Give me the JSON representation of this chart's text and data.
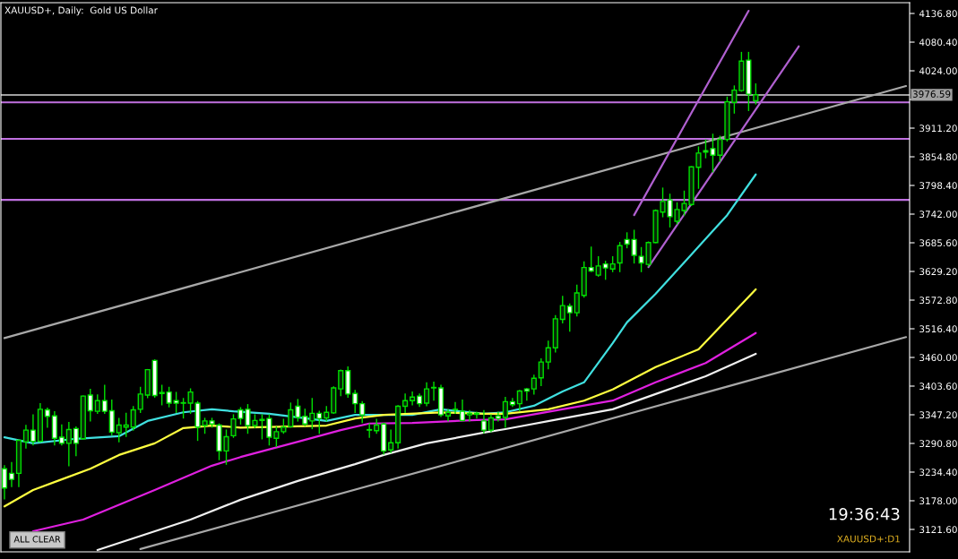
{
  "chart_data": {
    "type": "candlestick",
    "title": "XAUUSD+, Daily:  Gold US Dollar",
    "annotations": [
      "19:36:43",
      "XAUUSD+:D1",
      "ALL CLEAR"
    ],
    "categories": [
      null,
      null,
      null,
      null,
      null,
      null,
      null,
      null,
      null,
      null,
      null,
      null,
      null,
      null,
      null,
      null,
      null,
      null,
      null,
      null,
      null,
      null,
      null,
      null,
      null,
      null,
      null,
      null,
      null,
      null,
      null,
      null,
      null,
      null,
      null,
      null,
      null,
      null,
      null,
      null,
      null,
      null,
      null,
      null,
      null,
      null,
      null,
      null,
      null,
      null,
      null,
      null,
      null,
      null,
      null,
      null,
      null,
      null,
      null,
      null,
      null,
      null,
      null,
      null,
      null,
      null,
      null,
      null,
      null,
      null,
      null,
      null,
      null,
      null,
      null,
      null,
      null,
      null,
      null,
      null,
      null,
      null,
      null,
      null,
      null,
      null,
      null,
      null,
      null,
      null,
      null,
      null,
      null,
      null,
      null,
      null,
      null,
      null,
      null,
      null,
      null,
      null,
      null,
      null,
      null,
      null,
      null,
      null,
      null,
      null,
      null,
      null,
      null,
      null,
      null,
      null,
      null,
      null,
      null,
      null,
      null,
      null,
      null,
      null,
      null,
      null,
      null
    ],
    "color": "#00e000",
    "ohlc": [
      [
        3241,
        3247,
        3182,
        3203
      ],
      [
        3232,
        3253,
        3206,
        3220
      ],
      [
        3232,
        3297,
        3206,
        3297
      ],
      [
        3294,
        3326,
        3282,
        3317
      ],
      [
        3317,
        3347,
        3288,
        3295
      ],
      [
        3295,
        3369,
        3294,
        3358
      ],
      [
        3357,
        3360,
        3323,
        3344
      ],
      [
        3345,
        3353,
        3288,
        3301
      ],
      [
        3303,
        3327,
        3288,
        3291
      ],
      [
        3291,
        3332,
        3247,
        3318
      ],
      [
        3320,
        3323,
        3267,
        3291
      ],
      [
        3300,
        3384,
        3300,
        3384
      ],
      [
        3386,
        3397,
        3335,
        3355
      ],
      [
        3354,
        3386,
        3350,
        3375
      ],
      [
        3375,
        3405,
        3350,
        3354
      ],
      [
        3355,
        3376,
        3308,
        3313
      ],
      [
        3312,
        3340,
        3294,
        3327
      ],
      [
        3323,
        3350,
        3305,
        3327
      ],
      [
        3323,
        3363,
        3317,
        3357
      ],
      [
        3358,
        3401,
        3352,
        3388
      ],
      [
        3386,
        3436,
        3381,
        3436
      ],
      [
        3454,
        3455,
        3382,
        3385
      ],
      [
        3391,
        3405,
        3367,
        3389
      ],
      [
        3392,
        3401,
        3363,
        3370
      ],
      [
        3375,
        3391,
        3352,
        3370
      ],
      [
        3371,
        3379,
        3341,
        3370
      ],
      [
        3370,
        3398,
        3350,
        3392
      ],
      [
        3370,
        3373,
        3297,
        3323
      ],
      [
        3326,
        3340,
        3311,
        3335
      ],
      [
        3335,
        3340,
        3323,
        3329
      ],
      [
        3327,
        3329,
        3259,
        3276
      ],
      [
        3276,
        3317,
        3250,
        3304
      ],
      [
        3306,
        3347,
        3303,
        3339
      ],
      [
        3357,
        3361,
        3329,
        3340
      ],
      [
        3358,
        3367,
        3311,
        3326
      ],
      [
        3326,
        3347,
        3322,
        3336
      ],
      [
        3338,
        3347,
        3300,
        3336
      ],
      [
        3340,
        3347,
        3288,
        3303
      ],
      [
        3301,
        3323,
        3285,
        3314
      ],
      [
        3314,
        3338,
        3311,
        3323
      ],
      [
        3324,
        3370,
        3323,
        3357
      ],
      [
        3364,
        3377,
        3335,
        3342
      ],
      [
        3344,
        3358,
        3326,
        3329
      ],
      [
        3335,
        3379,
        3320,
        3350
      ],
      [
        3350,
        3354,
        3311,
        3340
      ],
      [
        3341,
        3363,
        3335,
        3352
      ],
      [
        3351,
        3402,
        3350,
        3400
      ],
      [
        3398,
        3435,
        3385,
        3434
      ],
      [
        3434,
        3441,
        3382,
        3388
      ],
      [
        3389,
        3395,
        3352,
        3369
      ],
      [
        3369,
        3373,
        3332,
        3347
      ],
      [
        3318,
        3329,
        3303,
        3317
      ],
      [
        3316,
        3338,
        3311,
        3327
      ],
      [
        3329,
        3330,
        3270,
        3276
      ],
      [
        3278,
        3317,
        3273,
        3292
      ],
      [
        3292,
        3365,
        3282,
        3364
      ],
      [
        3364,
        3388,
        3352,
        3375
      ],
      [
        3375,
        3392,
        3367,
        3382
      ],
      [
        3384,
        3388,
        3364,
        3369
      ],
      [
        3370,
        3410,
        3365,
        3398
      ],
      [
        3400,
        3411,
        3376,
        3401
      ],
      [
        3400,
        3405,
        3344,
        3347
      ],
      [
        3345,
        3357,
        3335,
        3352
      ],
      [
        3357,
        3371,
        3350,
        3358
      ],
      [
        3354,
        3376,
        3335,
        3336
      ],
      [
        3347,
        3355,
        3335,
        3350
      ],
      [
        3348,
        3352,
        3341,
        3350
      ],
      [
        3335,
        3355,
        3312,
        3317
      ],
      [
        3317,
        3347,
        3314,
        3341
      ],
      [
        3345,
        3352,
        3335,
        3340
      ],
      [
        3342,
        3381,
        3323,
        3373
      ],
      [
        3373,
        3379,
        3364,
        3367
      ],
      [
        3369,
        3395,
        3355,
        3394
      ],
      [
        3398,
        3399,
        3376,
        3394
      ],
      [
        3398,
        3425,
        3388,
        3419
      ],
      [
        3420,
        3457,
        3405,
        3451
      ],
      [
        3451,
        3492,
        3438,
        3479
      ],
      [
        3479,
        3542,
        3471,
        3536
      ],
      [
        3535,
        3580,
        3528,
        3562
      ],
      [
        3561,
        3565,
        3512,
        3548
      ],
      [
        3548,
        3602,
        3542,
        3587
      ],
      [
        3582,
        3648,
        3579,
        3637
      ],
      [
        3637,
        3677,
        3629,
        3630
      ],
      [
        3622,
        3658,
        3620,
        3640
      ],
      [
        3644,
        3649,
        3614,
        3636
      ],
      [
        3634,
        3658,
        3629,
        3644
      ],
      [
        3646,
        3686,
        3629,
        3680
      ],
      [
        3692,
        3705,
        3676,
        3683
      ],
      [
        3692,
        3710,
        3646,
        3661
      ],
      [
        3659,
        3676,
        3629,
        3646
      ],
      [
        3643,
        3687,
        3640,
        3686
      ],
      [
        3686,
        3750,
        3686,
        3749
      ],
      [
        3746,
        3793,
        3737,
        3767
      ],
      [
        3770,
        3781,
        3717,
        3737
      ],
      [
        3728,
        3764,
        3723,
        3751
      ],
      [
        3749,
        3787,
        3740,
        3763
      ],
      [
        3761,
        3835,
        3759,
        3835
      ],
      [
        3834,
        3874,
        3793,
        3862
      ],
      [
        3867,
        3888,
        3853,
        3864
      ],
      [
        3871,
        3899,
        3825,
        3858
      ],
      [
        3858,
        3895,
        3846,
        3889
      ],
      [
        3889,
        3972,
        3886,
        3963
      ],
      [
        3962,
        3994,
        3941,
        3986
      ],
      [
        3985,
        4060,
        3984,
        4043
      ],
      [
        4045,
        4060,
        3946,
        3978
      ],
      [
        3965,
        3998,
        3959,
        3977
      ],
      null,
      null,
      null,
      null,
      null,
      null,
      null,
      null,
      null,
      null,
      null,
      null,
      null,
      null,
      null,
      null,
      null,
      null,
      null,
      null,
      null
    ],
    "series": [
      {
        "type": "line",
        "color": "#40e0e0",
        "values": [
          3303,
          null,
          null,
          null,
          3291,
          null,
          null,
          null,
          null,
          null,
          3300,
          null,
          null,
          null,
          null,
          null,
          3305,
          null,
          null,
          null,
          3335,
          null,
          null,
          null,
          null,
          3352,
          null,
          null,
          null,
          3358,
          null,
          null,
          3354,
          null,
          null,
          null,
          null,
          3349,
          null,
          null,
          null,
          null,
          null,
          null,
          null,
          3335,
          null,
          null,
          null,
          3347,
          null,
          null,
          null,
          null,
          null,
          null,
          null,
          3347,
          null,
          null,
          null,
          3358,
          null,
          null,
          null,
          null,
          null,
          3349,
          null,
          null,
          3352,
          null,
          null,
          null,
          3365,
          null,
          null,
          null,
          3393,
          null,
          null,
          3411,
          null,
          null,
          null,
          3488,
          null,
          3529,
          null,
          null,
          null,
          3585,
          null,
          null,
          null,
          null,
          null,
          null,
          null,
          null,
          null,
          3740,
          null,
          null,
          null,
          3820,
          null,
          null,
          null,
          null,
          null,
          null,
          null,
          null,
          null,
          null,
          null,
          null,
          null,
          null,
          null,
          null,
          null,
          null,
          null,
          null,
          null
        ]
      },
      {
        "type": "line",
        "color": "#ffff40",
        "values": [
          3167,
          null,
          null,
          null,
          3199,
          null,
          null,
          null,
          3220,
          null,
          null,
          null,
          3241,
          null,
          null,
          null,
          3268,
          null,
          null,
          null,
          null,
          3291,
          null,
          null,
          null,
          3321,
          null,
          null,
          null,
          3326,
          null,
          null,
          null,
          3322,
          null,
          null,
          null,
          null,
          null,
          null,
          null,
          null,
          null,
          null,
          null,
          3326,
          null,
          null,
          null,
          3340,
          null,
          null,
          null,
          3347,
          null,
          null,
          null,
          null,
          null,
          null,
          null,
          3352,
          null,
          null,
          null,
          null,
          null,
          3349,
          null,
          null,
          3349,
          null,
          null,
          null,
          null,
          null,
          3358,
          null,
          null,
          null,
          null,
          3375,
          null,
          null,
          null,
          3397,
          null,
          null,
          null,
          null,
          null,
          3441,
          null,
          null,
          null,
          null,
          null,
          3476,
          null,
          null,
          null,
          null,
          null,
          null,
          null,
          3594,
          null,
          null,
          null,
          null,
          null,
          null,
          null,
          null,
          null,
          null,
          null,
          null,
          null,
          null,
          null,
          null,
          null,
          null,
          null,
          null,
          null
        ]
      },
      {
        "type": "line",
        "color": "#e020e0",
        "values": [
          null,
          null,
          null,
          null,
          3118,
          null,
          null,
          null,
          null,
          null,
          null,
          3141,
          null,
          null,
          null,
          null,
          null,
          null,
          null,
          null,
          null,
          3199,
          null,
          null,
          null,
          null,
          null,
          null,
          null,
          3247,
          null,
          null,
          null,
          3264,
          null,
          null,
          null,
          null,
          null,
          null,
          null,
          3294,
          null,
          null,
          null,
          null,
          null,
          3317,
          null,
          null,
          null,
          3330,
          null,
          null,
          null,
          null,
          null,
          3331,
          null,
          null,
          null,
          null,
          null,
          null,
          null,
          null,
          3337,
          null,
          null,
          null,
          3338,
          null,
          null,
          null,
          null,
          null,
          null,
          null,
          3358,
          null,
          null,
          null,
          null,
          null,
          null,
          3375,
          null,
          null,
          null,
          null,
          null,
          3411,
          null,
          null,
          null,
          null,
          null,
          null,
          3449,
          null,
          null,
          null,
          null,
          null,
          null,
          3508,
          null,
          null,
          null,
          null,
          null,
          null,
          null,
          null,
          null,
          null,
          null,
          null,
          null,
          null,
          null,
          null,
          null,
          null,
          null,
          null,
          null
        ]
      },
      {
        "type": "line",
        "color": "#f0f0f0",
        "values": [
          null,
          null,
          null,
          null,
          null,
          null,
          null,
          null,
          null,
          null,
          null,
          null,
          null,
          3081,
          null,
          null,
          null,
          null,
          null,
          null,
          null,
          null,
          null,
          null,
          null,
          null,
          3141,
          null,
          null,
          null,
          null,
          null,
          null,
          3180,
          null,
          null,
          null,
          null,
          null,
          null,
          null,
          3217,
          null,
          null,
          null,
          null,
          null,
          null,
          null,
          3250,
          null,
          null,
          null,
          3268,
          null,
          null,
          null,
          null,
          null,
          3291,
          null,
          null,
          null,
          null,
          null,
          null,
          null,
          3312,
          null,
          null,
          3319,
          null,
          null,
          null,
          null,
          null,
          null,
          null,
          3340,
          null,
          null,
          null,
          null,
          null,
          null,
          3358,
          null,
          null,
          null,
          null,
          null,
          3388,
          null,
          null,
          null,
          null,
          null,
          null,
          3423,
          null,
          null,
          null,
          null,
          null,
          null,
          3467,
          null,
          null,
          null,
          null,
          null,
          null,
          null,
          null,
          null,
          null,
          null,
          null,
          null,
          null,
          null,
          null,
          null,
          null,
          null,
          null,
          null
        ]
      },
      {
        "type": "line",
        "color": "#a8a8a8",
        "values": [
          3498,
          null,
          null,
          null,
          null,
          null,
          null,
          null,
          null,
          null,
          null,
          null,
          null,
          null,
          null,
          null,
          null,
          null,
          null,
          null,
          null,
          null,
          null,
          null,
          null,
          null,
          null,
          null,
          null,
          null,
          null,
          null,
          null,
          null,
          null,
          null,
          null,
          null,
          null,
          null,
          null,
          null,
          null,
          null,
          null,
          null,
          null,
          null,
          null,
          null,
          null,
          null,
          null,
          null,
          null,
          null,
          null,
          null,
          null,
          null,
          null,
          null,
          null,
          null,
          null,
          null,
          null,
          null,
          null,
          null,
          null,
          null,
          null,
          null,
          null,
          null,
          null,
          null,
          null,
          null,
          null,
          null,
          null,
          null,
          null,
          null,
          null,
          null,
          null,
          null,
          null,
          null,
          null,
          null,
          null,
          null,
          null,
          null,
          null,
          null,
          null,
          null,
          null,
          null,
          null,
          null,
          null,
          null,
          null,
          null,
          null,
          null,
          null,
          null,
          null,
          null,
          null,
          null,
          null,
          null,
          null,
          null,
          null,
          null,
          null,
          null,
          3994
        ]
      },
      {
        "type": "line",
        "color": "#a8a8a8",
        "values": [
          null,
          null,
          null,
          null,
          null,
          null,
          null,
          null,
          null,
          null,
          null,
          null,
          null,
          null,
          null,
          null,
          null,
          null,
          null,
          3083,
          null,
          null,
          null,
          null,
          null,
          null,
          null,
          null,
          null,
          null,
          null,
          null,
          null,
          null,
          null,
          null,
          null,
          null,
          null,
          null,
          null,
          null,
          null,
          null,
          null,
          null,
          null,
          null,
          null,
          null,
          null,
          null,
          null,
          null,
          null,
          null,
          null,
          null,
          null,
          null,
          null,
          null,
          null,
          null,
          null,
          null,
          null,
          null,
          null,
          null,
          null,
          null,
          null,
          null,
          null,
          null,
          null,
          null,
          null,
          null,
          null,
          null,
          null,
          null,
          null,
          null,
          null,
          null,
          null,
          null,
          null,
          null,
          null,
          null,
          null,
          null,
          null,
          null,
          null,
          null,
          null,
          null,
          null,
          null,
          null,
          null,
          null,
          null,
          null,
          null,
          null,
          null,
          null,
          null,
          null,
          null,
          null,
          null,
          null,
          null,
          null,
          null,
          null,
          null,
          null,
          null,
          3500
        ]
      },
      {
        "type": "line",
        "color": "#b060d0",
        "values": [
          null,
          null,
          null,
          null,
          null,
          null,
          null,
          null,
          null,
          null,
          null,
          null,
          null,
          null,
          null,
          null,
          null,
          null,
          null,
          null,
          null,
          null,
          null,
          null,
          null,
          null,
          null,
          null,
          null,
          null,
          null,
          null,
          null,
          null,
          null,
          null,
          null,
          null,
          null,
          null,
          null,
          null,
          null,
          null,
          null,
          null,
          null,
          null,
          null,
          null,
          null,
          null,
          null,
          null,
          null,
          null,
          null,
          null,
          null,
          null,
          null,
          null,
          null,
          null,
          null,
          null,
          null,
          null,
          null,
          null,
          null,
          null,
          null,
          null,
          null,
          null,
          null,
          null,
          null,
          null,
          null,
          null,
          null,
          null,
          null,
          null,
          null,
          null,
          3740,
          null,
          null,
          null,
          null,
          null,
          null,
          null,
          null,
          null,
          null,
          null,
          null,
          null,
          null,
          null,
          4142,
          null,
          null,
          null,
          null,
          null,
          null,
          null,
          null,
          null,
          null,
          null,
          null,
          null,
          null,
          null,
          null,
          null,
          null,
          null,
          null,
          null,
          null
        ]
      },
      {
        "type": "line",
        "color": "#b060d0",
        "values": [
          null,
          null,
          null,
          null,
          null,
          null,
          null,
          null,
          null,
          null,
          null,
          null,
          null,
          null,
          null,
          null,
          null,
          null,
          null,
          null,
          null,
          null,
          null,
          null,
          null,
          null,
          null,
          null,
          null,
          null,
          null,
          null,
          null,
          null,
          null,
          null,
          null,
          null,
          null,
          null,
          null,
          null,
          null,
          null,
          null,
          null,
          null,
          null,
          null,
          null,
          null,
          null,
          null,
          null,
          null,
          null,
          null,
          null,
          null,
          null,
          null,
          null,
          null,
          null,
          null,
          null,
          null,
          null,
          null,
          null,
          null,
          null,
          null,
          null,
          null,
          null,
          null,
          null,
          null,
          null,
          null,
          null,
          null,
          null,
          null,
          null,
          null,
          null,
          null,
          null,
          3638,
          null,
          null,
          null,
          null,
          null,
          null,
          null,
          null,
          null,
          null,
          null,
          null,
          null,
          null,
          null,
          null,
          null,
          null,
          null,
          null,
          4072,
          null,
          null,
          null,
          null,
          null,
          null,
          null,
          null,
          null,
          null,
          null,
          null,
          null,
          null,
          null
        ]
      }
    ],
    "ref_lines": [
      {
        "axis": "y",
        "value": 3962,
        "color": "#c070e0"
      },
      {
        "axis": "y",
        "value": 3890,
        "color": "#c070e0"
      },
      {
        "axis": "y",
        "value": 3770,
        "color": "#c070e0"
      },
      {
        "axis": "y",
        "value": 3976.59,
        "label": "3976.59",
        "color": "#a0a0a0"
      }
    ],
    "ylim": [
      3077.5,
      4158
    ],
    "yticks": [
      {
        "value": 3121.6,
        "label": "3121.60"
      },
      {
        "value": 3178,
        "label": "3178.00"
      },
      {
        "value": 3234.4,
        "label": "3234.40"
      },
      {
        "value": 3290.8,
        "label": "3290.80"
      },
      {
        "value": 3347.2,
        "label": "3347.20"
      },
      {
        "value": 3403.6,
        "label": "3403.60"
      },
      {
        "value": 3460,
        "label": "3460.00"
      },
      {
        "value": 3516.4,
        "label": "3516.40"
      },
      {
        "value": 3572.8,
        "label": "3572.80"
      },
      {
        "value": 3629.2,
        "label": "3629.20"
      },
      {
        "value": 3685.6,
        "label": "3685.60"
      },
      {
        "value": 3742,
        "label": "3742.00"
      },
      {
        "value": 3798.4,
        "label": "3798.40"
      },
      {
        "value": 3854.8,
        "label": "3854.80"
      },
      {
        "value": 3911.2,
        "label": "3911.20"
      },
      {
        "value": 3967.6,
        "label": null
      },
      {
        "value": 4024,
        "label": "4024.00"
      },
      {
        "value": 4080.4,
        "label": "4080.40"
      },
      {
        "value": 4136.8,
        "label": "4136.80"
      }
    ],
    "tick_labels": "y",
    "grid": false
  }
}
